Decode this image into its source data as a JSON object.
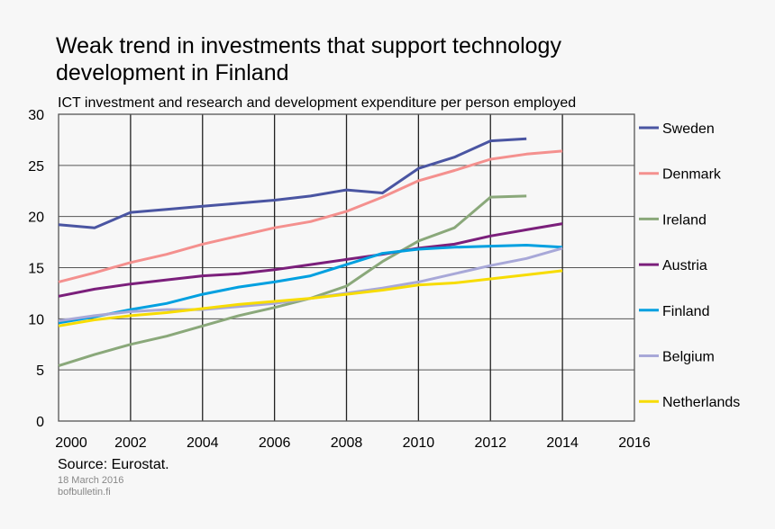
{
  "title": "Weak trend in investments that support technology development in Finland",
  "subtitle": "ICT investment and research and development expenditure per person employed",
  "source": "Source: Eurostat.",
  "date": "18 March 2016",
  "site": "bofbulletin.fi",
  "chart_data": {
    "type": "line",
    "title": "Weak trend in investments that support technology development in Finland",
    "subtitle": "ICT investment and research and development expenditure per person employed",
    "xlim": [
      2000,
      2016
    ],
    "ylim": [
      0,
      30
    ],
    "xticks": [
      "2000",
      "2002",
      "2004",
      "2006",
      "2008",
      "2010",
      "2012",
      "2014",
      "2016"
    ],
    "yticks": [
      "0",
      "5",
      "10",
      "15",
      "20",
      "25",
      "30"
    ],
    "grid": true,
    "legend": "right",
    "x": [
      2000,
      2001,
      2002,
      2003,
      2004,
      2005,
      2006,
      2007,
      2008,
      2009,
      2010,
      2011,
      2012,
      2013,
      2014
    ],
    "series": [
      {
        "name": "Sweden",
        "color": "#4a55a2",
        "values": [
          19.2,
          18.9,
          20.4,
          20.7,
          21.0,
          21.3,
          21.6,
          22.0,
          22.6,
          22.3,
          24.7,
          25.8,
          27.4,
          27.6,
          null
        ]
      },
      {
        "name": "Denmark",
        "color": "#f4908e",
        "values": [
          13.6,
          14.5,
          15.5,
          16.3,
          17.3,
          18.1,
          18.9,
          19.5,
          20.5,
          21.9,
          23.5,
          24.5,
          25.6,
          26.1,
          26.4
        ]
      },
      {
        "name": "Ireland",
        "color": "#8aa87a",
        "values": [
          5.4,
          6.5,
          7.5,
          8.3,
          9.3,
          10.3,
          11.1,
          12.0,
          13.2,
          15.6,
          17.6,
          18.9,
          21.9,
          22.0,
          null
        ]
      },
      {
        "name": "Austria",
        "color": "#7b1f7b",
        "values": [
          12.2,
          12.9,
          13.4,
          13.8,
          14.2,
          14.4,
          14.8,
          15.3,
          15.8,
          16.3,
          16.9,
          17.3,
          18.1,
          18.7,
          19.3
        ]
      },
      {
        "name": "Finland",
        "color": "#00a0e0",
        "values": [
          9.6,
          10.2,
          10.9,
          11.5,
          12.4,
          13.1,
          13.6,
          14.2,
          15.3,
          16.4,
          16.8,
          17.0,
          17.1,
          17.2,
          17.0
        ]
      },
      {
        "name": "Belgium",
        "color": "#a8a8d8",
        "values": [
          9.8,
          10.3,
          10.7,
          10.9,
          10.9,
          11.2,
          11.5,
          12.0,
          12.5,
          13.0,
          13.6,
          14.4,
          15.2,
          15.9,
          16.9
        ]
      },
      {
        "name": "Netherlands",
        "color": "#f7dc00",
        "values": [
          9.3,
          9.9,
          10.3,
          10.6,
          11.0,
          11.4,
          11.7,
          12.0,
          12.4,
          12.8,
          13.3,
          13.5,
          13.9,
          14.3,
          14.7
        ]
      }
    ]
  }
}
